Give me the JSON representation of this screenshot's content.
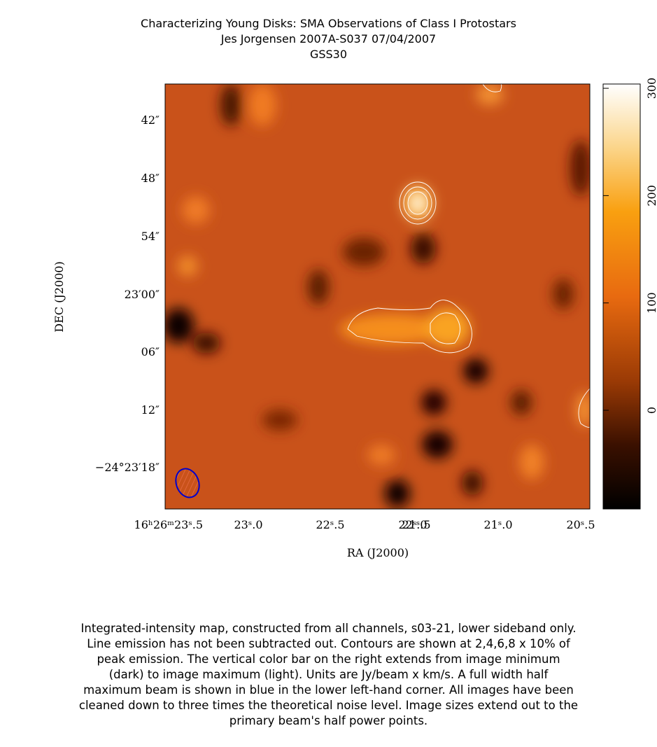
{
  "header": {
    "title": "Characterizing Young Disks: SMA Observations of Class I Protostars",
    "subtitle": "Jes Jorgensen    2007A-S037    07/04/2007",
    "source": "GSS30"
  },
  "axes": {
    "x_label": "RA (J2000)",
    "y_label": "DEC (J2000)",
    "x_ticks": [
      "16ʰ26ᵐ23ˢ.5",
      "23ˢ.0",
      "22ˢ.5",
      "22ˢ.0",
      "21ˢ.5",
      "21ˢ.0",
      "20ˢ.5"
    ],
    "y_ticks": [
      "42″",
      "48″",
      "54″",
      "23′00″",
      "06″",
      "12″",
      "−24°23′18″"
    ]
  },
  "colorbar": {
    "ticks": [
      0,
      100,
      200,
      300
    ]
  },
  "caption": [
    "Integrated-intensity map, constructed from all channels, s03-21, lower sideband only.",
    "Line emission has not been subtracted out.  Contours are shown at 2,4,6,8 x 10% of",
    "peak emission.  The vertical color bar on the right extends from image minimum",
    "(dark) to image maximum (light).  Units are Jy/beam x km/s.  A full width half",
    "maximum beam is shown in blue in the lower left-hand corner.  All images have been",
    "cleaned down to three times the theoretical noise level.  Image sizes extend out to the",
    "primary beam's half power points."
  ]
}
